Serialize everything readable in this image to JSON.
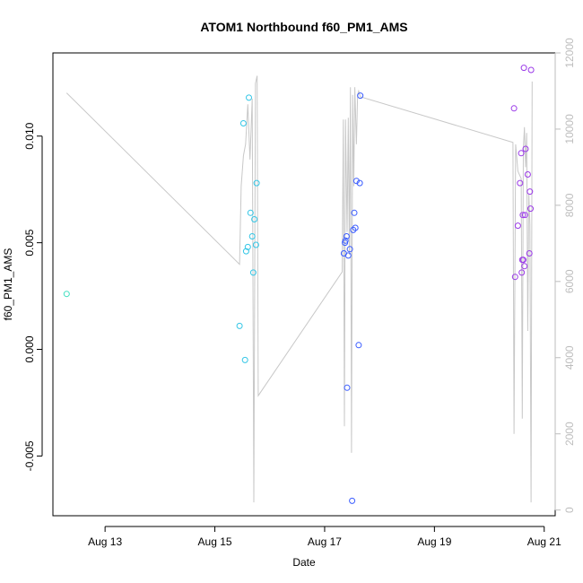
{
  "chart_data": {
    "type": "scatter",
    "title": "ATOM1 Northbound f60_PM1_AMS",
    "xlabel": "Date",
    "ylabel": "f60_PM1_AMS",
    "xlim": [
      12.05,
      21.2
    ],
    "ylim": [
      -0.0078,
      0.0139
    ],
    "y2lim": [
      -150,
      12000
    ],
    "x_ticks": [
      {
        "value": 13,
        "label": "Aug 13"
      },
      {
        "value": 15,
        "label": "Aug 15"
      },
      {
        "value": 17,
        "label": "Aug 17"
      },
      {
        "value": 19,
        "label": "Aug 19"
      },
      {
        "value": 21,
        "label": "Aug 21"
      }
    ],
    "y_ticks": [
      {
        "value": -0.005,
        "label": "-0.005"
      },
      {
        "value": 0.0,
        "label": "0.000"
      },
      {
        "value": 0.005,
        "label": "0.005"
      },
      {
        "value": 0.01,
        "label": "0.010"
      }
    ],
    "y2_ticks": [
      {
        "value": 0,
        "label": "0"
      },
      {
        "value": 2000,
        "label": "2000"
      },
      {
        "value": 4000,
        "label": "4000"
      },
      {
        "value": 6000,
        "label": "6000"
      },
      {
        "value": 8000,
        "label": "8000"
      },
      {
        "value": 10000,
        "label": "10000"
      },
      {
        "value": 12000,
        "label": "12000"
      }
    ],
    "points": [
      {
        "x": 12.3,
        "y": 0.0026,
        "color": "#40e0c0"
      },
      {
        "x": 15.45,
        "y": 0.0011,
        "color": "#33c6e6"
      },
      {
        "x": 15.52,
        "y": 0.0106,
        "color": "#33c6e6"
      },
      {
        "x": 15.55,
        "y": -0.0005,
        "color": "#33c6e6"
      },
      {
        "x": 15.57,
        "y": 0.0046,
        "color": "#33c6e6"
      },
      {
        "x": 15.6,
        "y": 0.0048,
        "color": "#33c6e6"
      },
      {
        "x": 15.62,
        "y": 0.0118,
        "color": "#33c6e6"
      },
      {
        "x": 15.65,
        "y": 0.0064,
        "color": "#33c6e6"
      },
      {
        "x": 15.68,
        "y": 0.0053,
        "color": "#33c6e6"
      },
      {
        "x": 15.7,
        "y": 0.0036,
        "color": "#33c6e6"
      },
      {
        "x": 15.72,
        "y": 0.0061,
        "color": "#33c6e6"
      },
      {
        "x": 15.75,
        "y": 0.0049,
        "color": "#33c6e6"
      },
      {
        "x": 15.76,
        "y": 0.0078,
        "color": "#33c6e6"
      },
      {
        "x": 17.35,
        "y": 0.0045,
        "color": "#3a5cff"
      },
      {
        "x": 17.37,
        "y": 0.005,
        "color": "#3a5cff"
      },
      {
        "x": 17.38,
        "y": 0.0051,
        "color": "#3a5cff"
      },
      {
        "x": 17.4,
        "y": 0.0053,
        "color": "#3a5cff"
      },
      {
        "x": 17.41,
        "y": -0.0018,
        "color": "#3a5cff"
      },
      {
        "x": 17.43,
        "y": 0.0044,
        "color": "#3a5cff"
      },
      {
        "x": 17.46,
        "y": 0.0047,
        "color": "#3a5cff"
      },
      {
        "x": 17.5,
        "y": -0.0071,
        "color": "#3a5cff"
      },
      {
        "x": 17.52,
        "y": 0.0056,
        "color": "#3a5cff"
      },
      {
        "x": 17.54,
        "y": 0.0064,
        "color": "#3a5cff"
      },
      {
        "x": 17.56,
        "y": 0.0057,
        "color": "#3a5cff"
      },
      {
        "x": 17.58,
        "y": 0.0079,
        "color": "#3a5cff"
      },
      {
        "x": 17.62,
        "y": 0.0002,
        "color": "#3a5cff"
      },
      {
        "x": 17.64,
        "y": 0.0078,
        "color": "#3a5cff"
      },
      {
        "x": 17.65,
        "y": 0.0119,
        "color": "#3a5cff"
      },
      {
        "x": 20.45,
        "y": 0.0113,
        "color": "#9b3ae8"
      },
      {
        "x": 20.47,
        "y": 0.0034,
        "color": "#9b3ae8"
      },
      {
        "x": 20.52,
        "y": 0.0058,
        "color": "#9b3ae8"
      },
      {
        "x": 20.56,
        "y": 0.0078,
        "color": "#9b3ae8"
      },
      {
        "x": 20.58,
        "y": 0.0092,
        "color": "#9b3ae8"
      },
      {
        "x": 20.59,
        "y": 0.0036,
        "color": "#9b3ae8"
      },
      {
        "x": 20.6,
        "y": 0.0042,
        "color": "#9b3ae8"
      },
      {
        "x": 20.61,
        "y": 0.0063,
        "color": "#9b3ae8"
      },
      {
        "x": 20.62,
        "y": 0.0042,
        "color": "#9b3ae8"
      },
      {
        "x": 20.63,
        "y": 0.0132,
        "color": "#9b3ae8"
      },
      {
        "x": 20.64,
        "y": 0.0039,
        "color": "#9b3ae8"
      },
      {
        "x": 20.65,
        "y": 0.0063,
        "color": "#9b3ae8"
      },
      {
        "x": 20.66,
        "y": 0.0094,
        "color": "#9b3ae8"
      },
      {
        "x": 20.7,
        "y": 0.0082,
        "color": "#9b3ae8"
      },
      {
        "x": 20.73,
        "y": 0.0045,
        "color": "#9b3ae8"
      },
      {
        "x": 20.74,
        "y": 0.0074,
        "color": "#9b3ae8"
      },
      {
        "x": 20.75,
        "y": 0.0066,
        "color": "#9b3ae8"
      },
      {
        "x": 20.76,
        "y": 0.0131,
        "color": "#9b3ae8"
      }
    ],
    "secondary_line": {
      "color": "#c8c8c8",
      "axis": "right",
      "points": [
        [
          12.3,
          10950
        ],
        [
          15.45,
          6450
        ],
        [
          15.48,
          8500
        ],
        [
          15.52,
          9300
        ],
        [
          15.56,
          9600
        ],
        [
          15.6,
          10650
        ],
        [
          15.64,
          9200
        ],
        [
          15.68,
          10800
        ],
        [
          15.71,
          200
        ],
        [
          15.74,
          11200
        ],
        [
          15.77,
          11400
        ],
        [
          15.79,
          3000
        ],
        [
          17.32,
          6250
        ],
        [
          17.34,
          10250
        ],
        [
          17.36,
          2200
        ],
        [
          17.38,
          10250
        ],
        [
          17.41,
          7300
        ],
        [
          17.43,
          10300
        ],
        [
          17.45,
          6700
        ],
        [
          17.47,
          11100
        ],
        [
          17.49,
          1500
        ],
        [
          17.51,
          10900
        ],
        [
          17.53,
          8500
        ],
        [
          17.55,
          11100
        ],
        [
          17.58,
          9600
        ],
        [
          17.6,
          10900
        ],
        [
          17.62,
          11000
        ],
        [
          17.65,
          10850
        ],
        [
          20.43,
          9650
        ],
        [
          20.45,
          2000
        ],
        [
          20.48,
          9600
        ],
        [
          20.52,
          8900
        ],
        [
          20.55,
          8800
        ],
        [
          20.58,
          8700
        ],
        [
          20.6,
          2400
        ],
        [
          20.62,
          9500
        ],
        [
          20.64,
          10050
        ],
        [
          20.66,
          9000
        ],
        [
          20.68,
          9900
        ],
        [
          20.7,
          4700
        ],
        [
          20.72,
          8300
        ],
        [
          20.74,
          7500
        ],
        [
          20.76,
          200
        ],
        [
          20.78,
          11250
        ]
      ]
    }
  }
}
